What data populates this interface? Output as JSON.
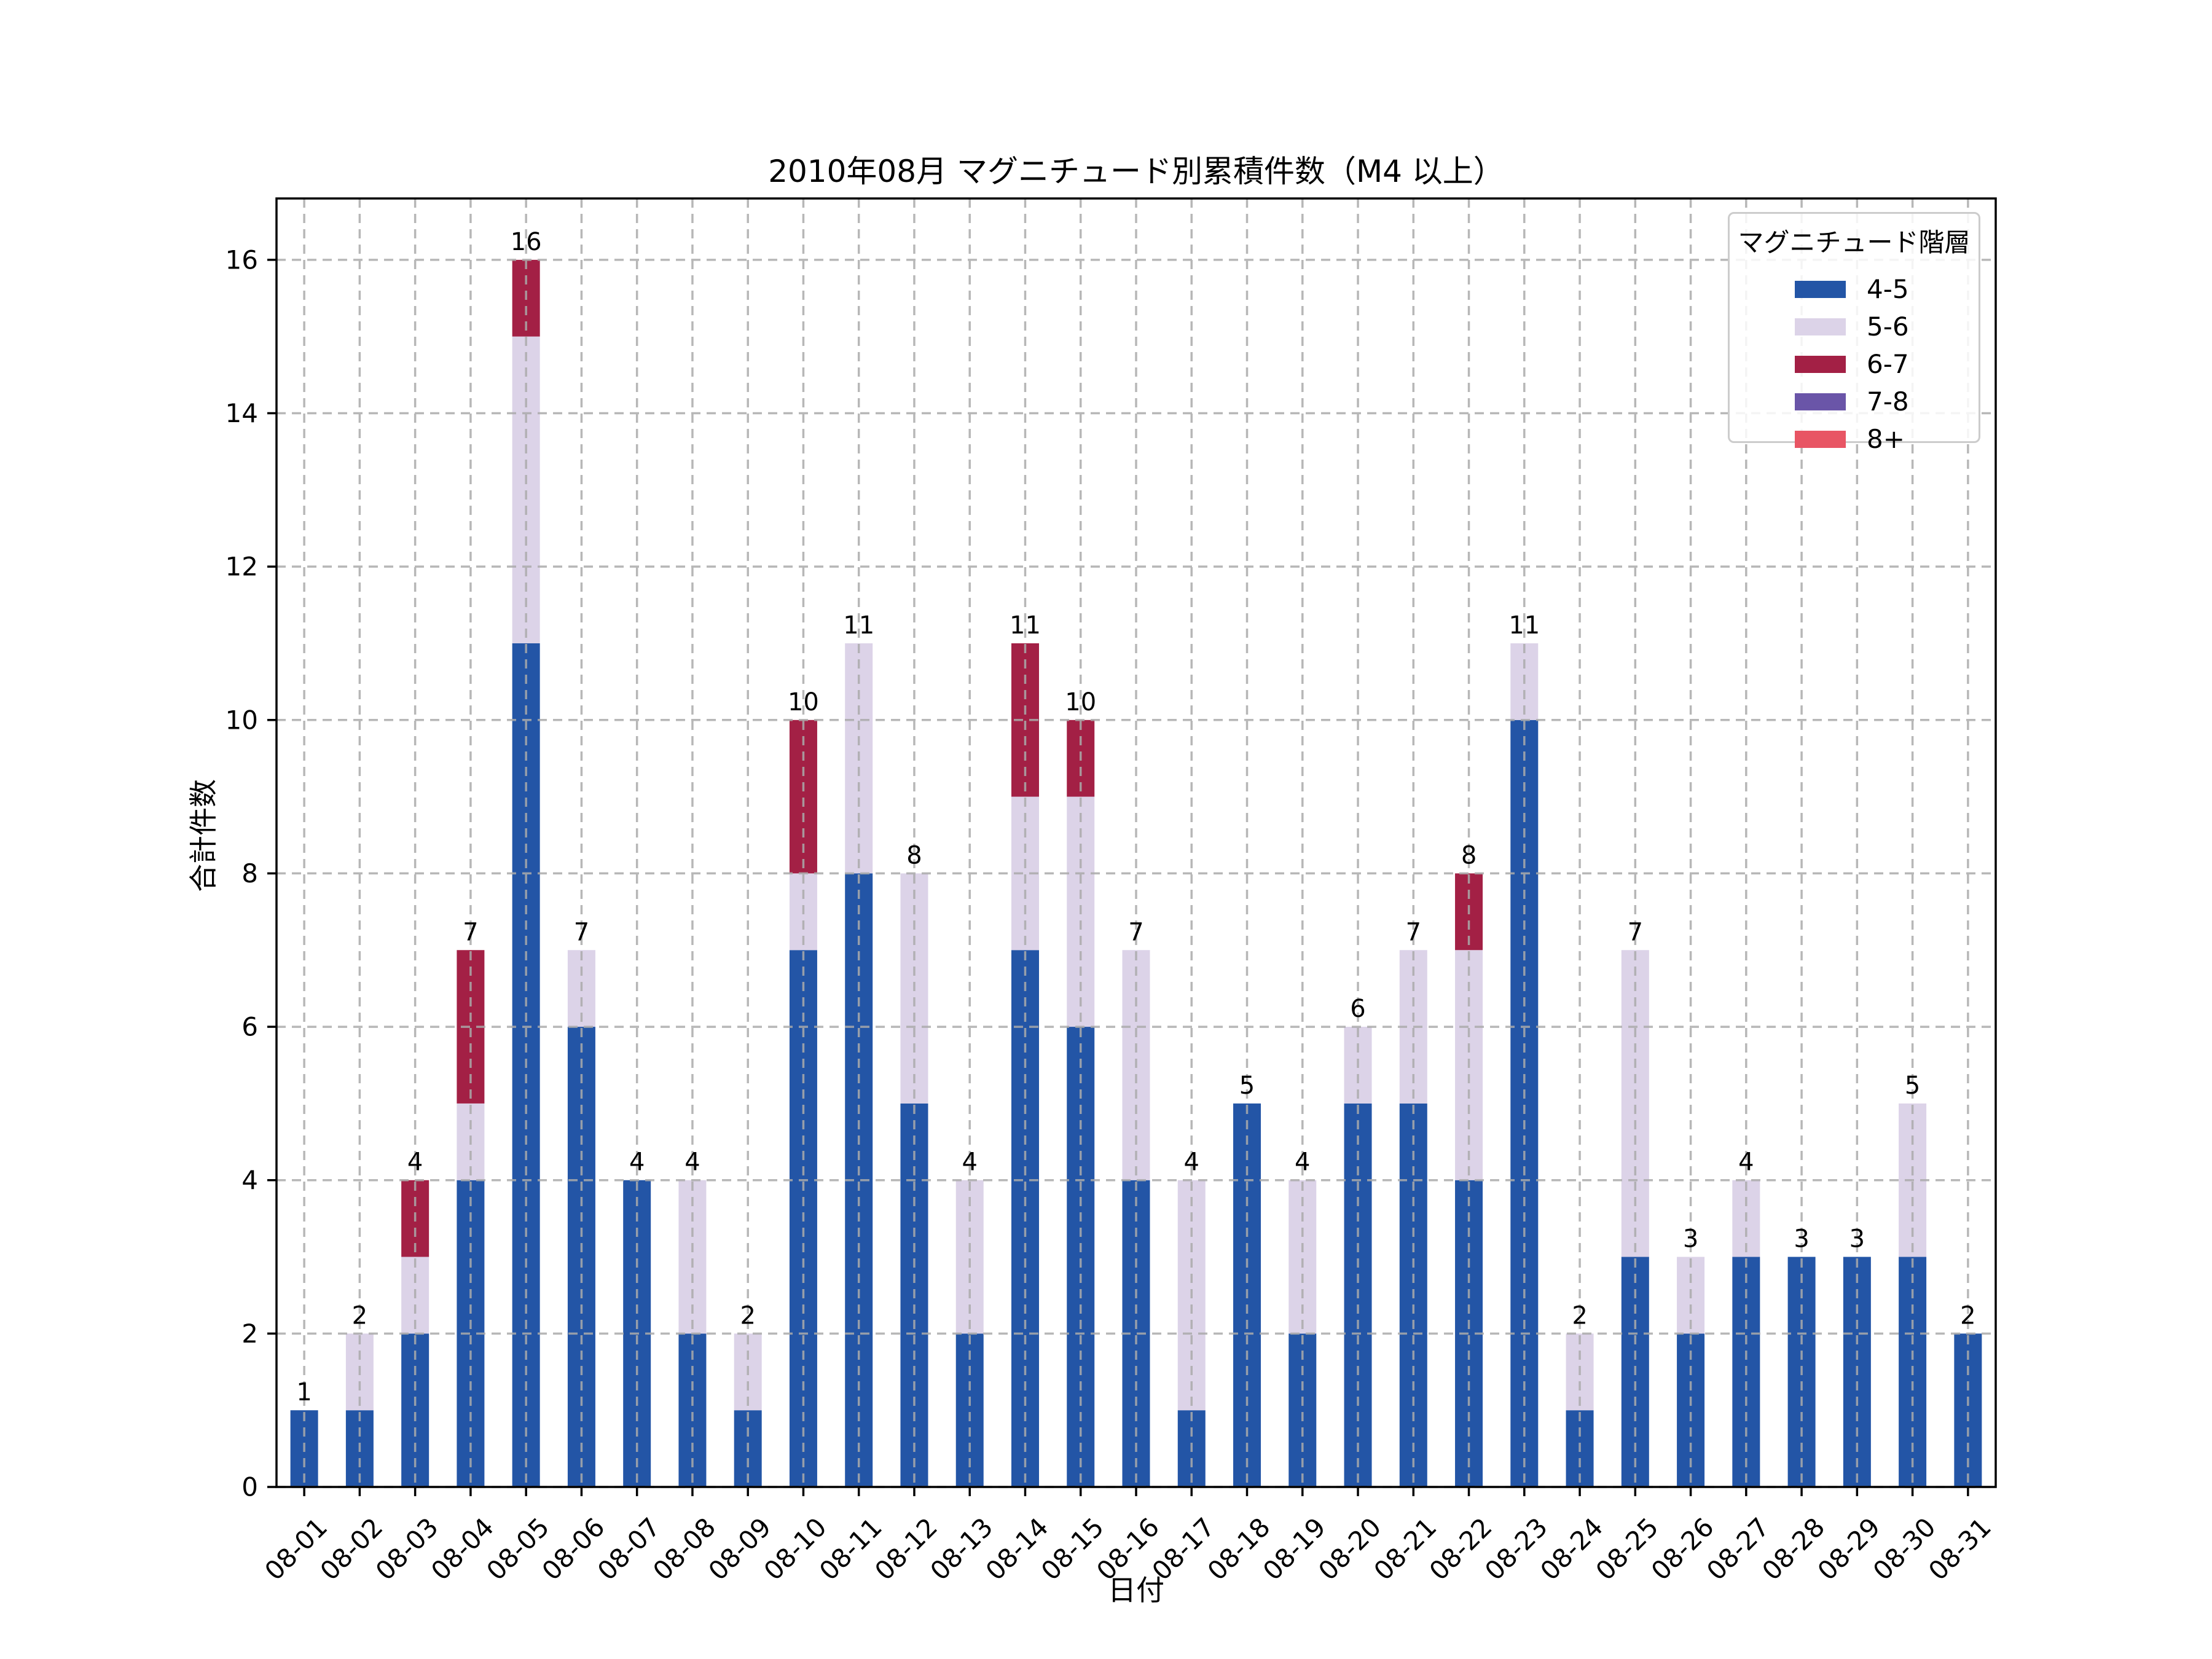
{
  "chart_data": {
    "type": "bar",
    "stacked": true,
    "title": "2010年08月 マグニチュード別累積件数（M4 以上）",
    "xlabel": "日付",
    "ylabel": "合計件数",
    "categories": [
      "08-01",
      "08-02",
      "08-03",
      "08-04",
      "08-05",
      "08-06",
      "08-07",
      "08-08",
      "08-09",
      "08-10",
      "08-11",
      "08-12",
      "08-13",
      "08-14",
      "08-15",
      "08-16",
      "08-17",
      "08-18",
      "08-19",
      "08-20",
      "08-21",
      "08-22",
      "08-23",
      "08-24",
      "08-25",
      "08-26",
      "08-27",
      "08-28",
      "08-29",
      "08-30",
      "08-31"
    ],
    "series": [
      {
        "name": "4-5",
        "color": "#2355A6",
        "values": [
          1,
          1,
          2,
          4,
          11,
          6,
          4,
          2,
          1,
          7,
          8,
          5,
          2,
          7,
          6,
          4,
          1,
          5,
          2,
          5,
          5,
          4,
          10,
          1,
          3,
          2,
          3,
          3,
          3,
          3,
          2
        ]
      },
      {
        "name": "5-6",
        "color": "#DCD3E8",
        "values": [
          0,
          1,
          1,
          1,
          4,
          1,
          0,
          2,
          1,
          1,
          3,
          3,
          2,
          2,
          3,
          3,
          3,
          0,
          2,
          1,
          2,
          3,
          1,
          1,
          4,
          1,
          1,
          0,
          0,
          2,
          0
        ]
      },
      {
        "name": "6-7",
        "color": "#A32045",
        "values": [
          0,
          0,
          1,
          2,
          1,
          0,
          0,
          0,
          0,
          2,
          0,
          0,
          0,
          2,
          1,
          0,
          0,
          0,
          0,
          0,
          0,
          1,
          0,
          0,
          0,
          0,
          0,
          0,
          0,
          0,
          0
        ]
      },
      {
        "name": "7-8",
        "color": "#6A55A8",
        "values": [
          0,
          0,
          0,
          0,
          0,
          0,
          0,
          0,
          0,
          0,
          0,
          0,
          0,
          0,
          0,
          0,
          0,
          0,
          0,
          0,
          0,
          0,
          0,
          0,
          0,
          0,
          0,
          0,
          0,
          0,
          0
        ]
      },
      {
        "name": "8+",
        "color": "#E85564",
        "values": [
          0,
          0,
          0,
          0,
          0,
          0,
          0,
          0,
          0,
          0,
          0,
          0,
          0,
          0,
          0,
          0,
          0,
          0,
          0,
          0,
          0,
          0,
          0,
          0,
          0,
          0,
          0,
          0,
          0,
          0,
          0
        ]
      }
    ],
    "totals": [
      1,
      2,
      4,
      7,
      16,
      7,
      4,
      4,
      2,
      10,
      11,
      8,
      4,
      11,
      10,
      7,
      4,
      5,
      4,
      6,
      7,
      8,
      11,
      2,
      7,
      3,
      4,
      3,
      3,
      5,
      2
    ],
    "ylim": [
      0,
      16.8
    ],
    "yticks": [
      0,
      2,
      4,
      6,
      8,
      10,
      12,
      14,
      16
    ],
    "grid": true,
    "legend": {
      "title": "マグニチュード階層",
      "position": "upper right"
    }
  },
  "style": {
    "grid_color": "#ABABAB",
    "spine_color": "#000000",
    "bar_label_color": "#000000"
  }
}
